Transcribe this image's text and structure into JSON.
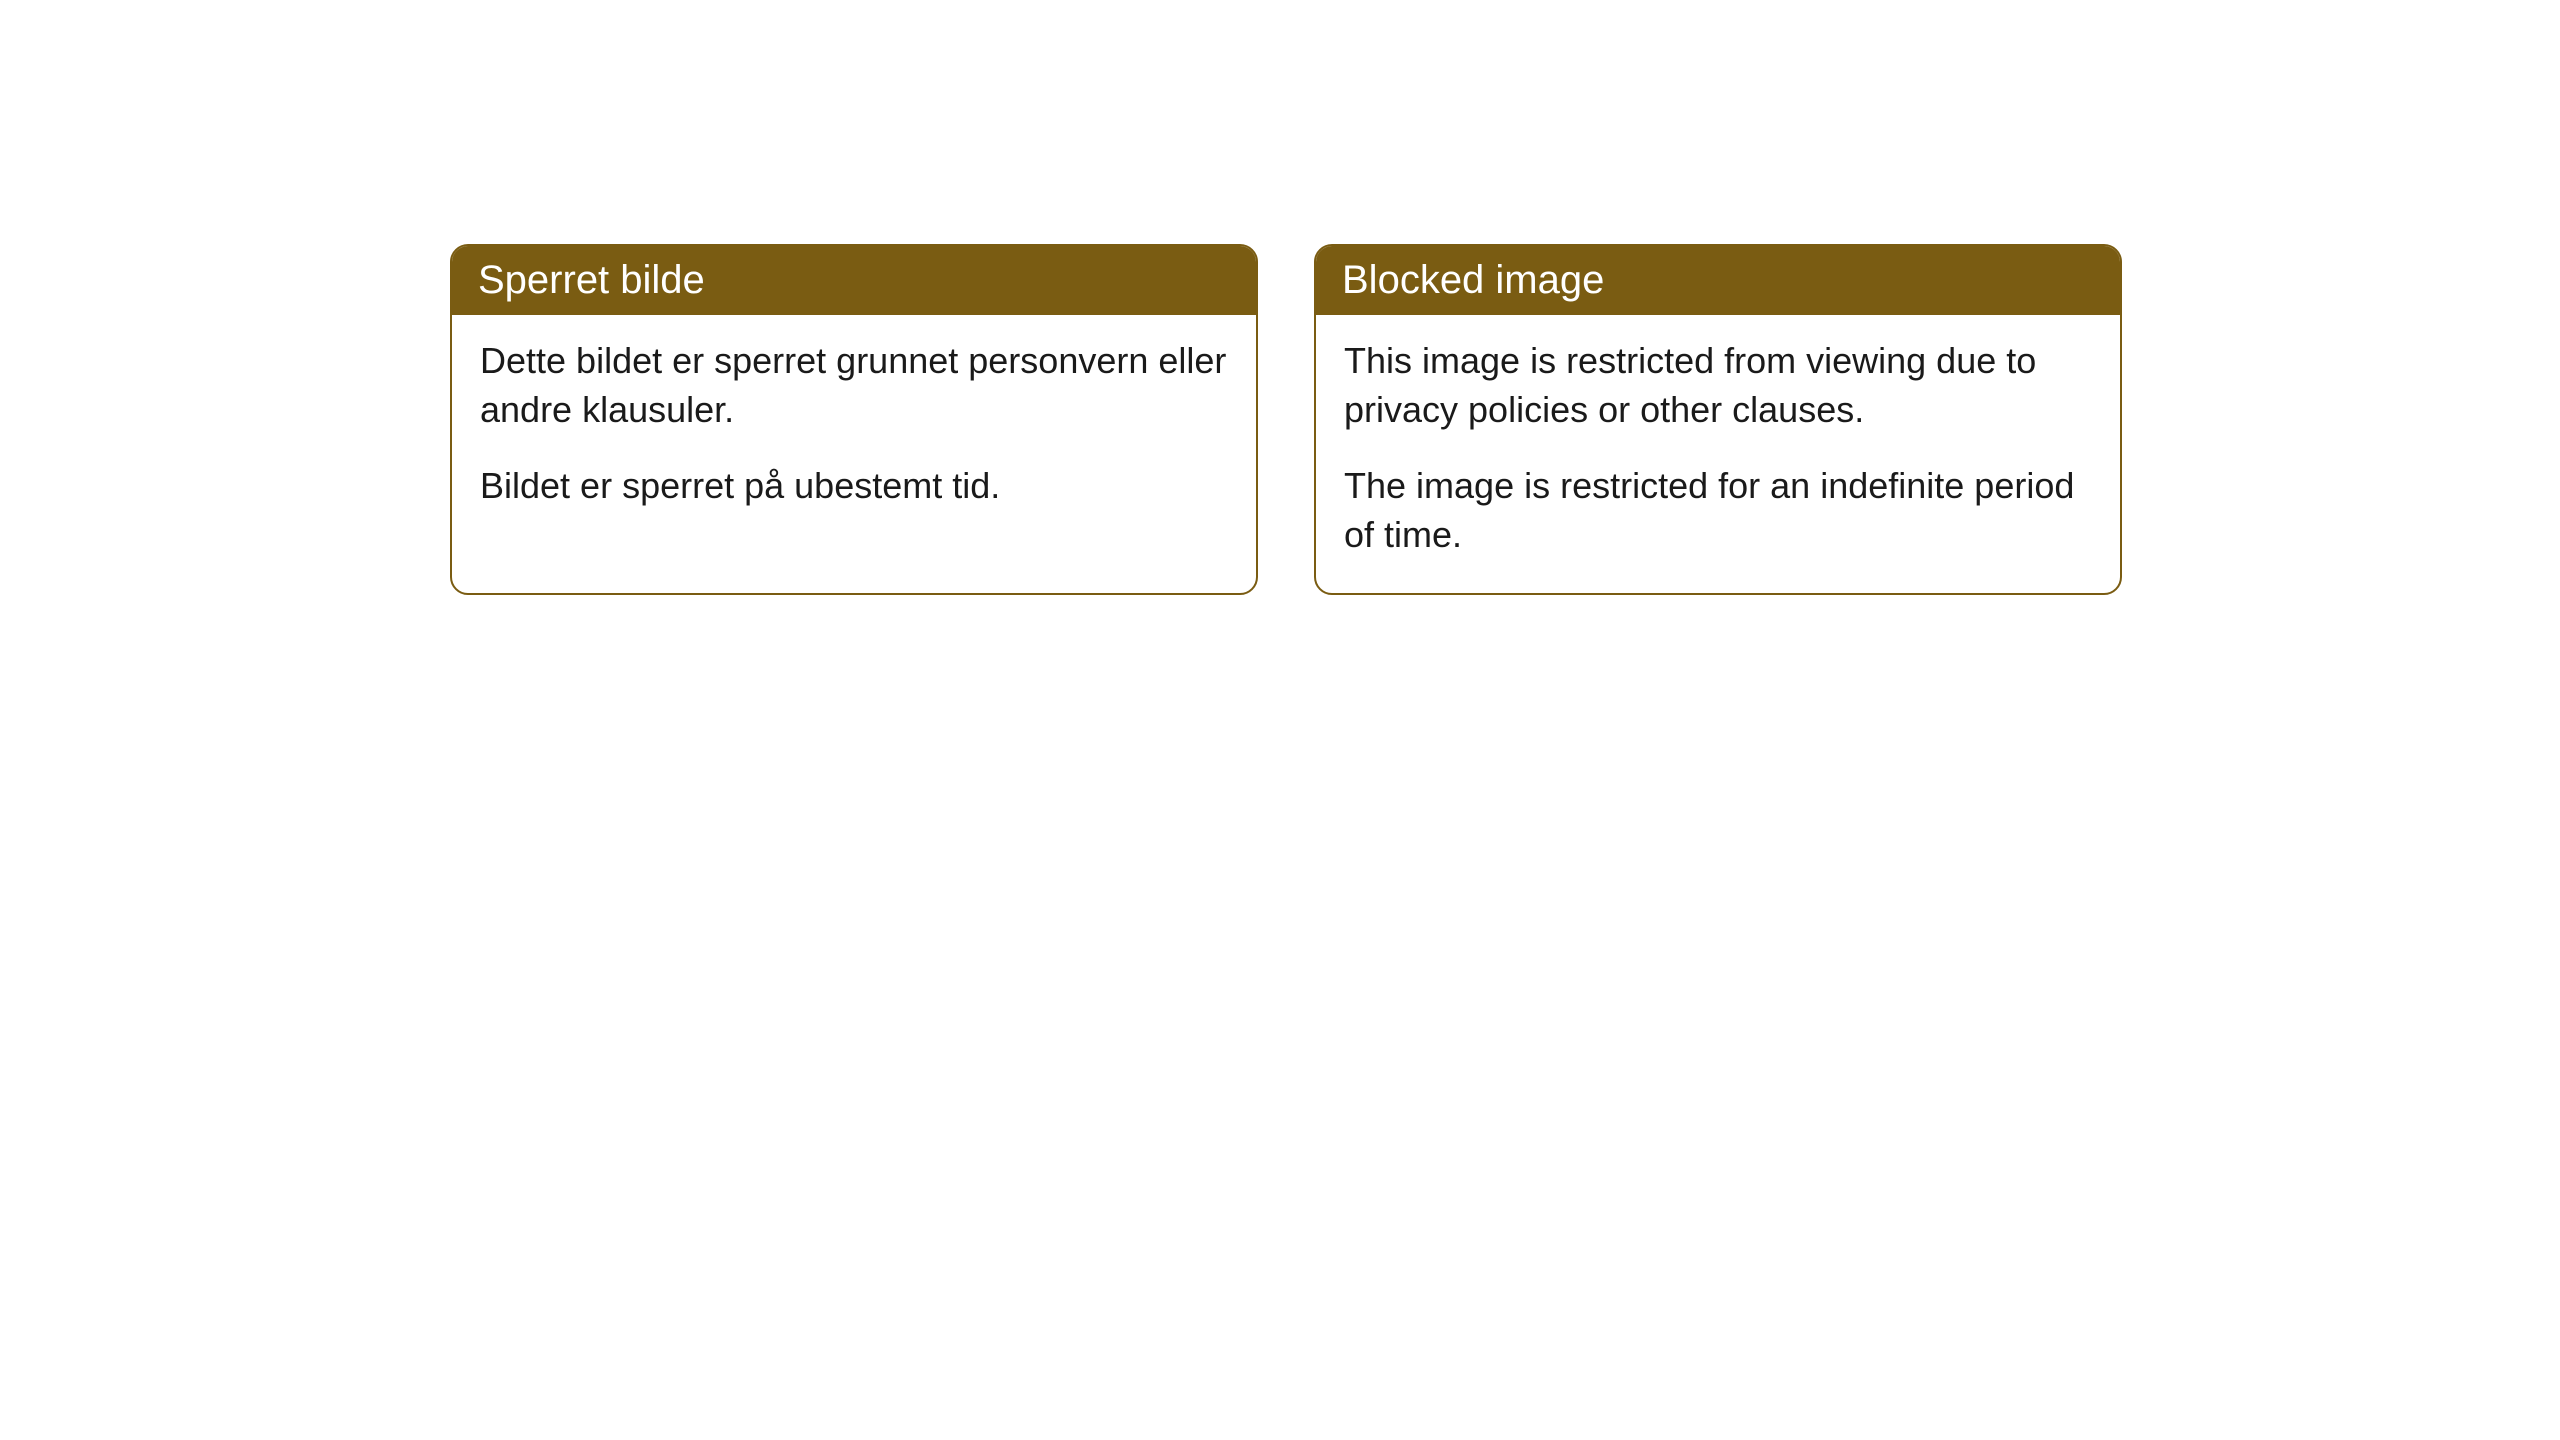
{
  "cards": [
    {
      "title": "Sperret bilde",
      "paragraph1": "Dette bildet er sperret grunnet personvern eller andre klausuler.",
      "paragraph2": "Bildet er sperret på ubestemt tid."
    },
    {
      "title": "Blocked image",
      "paragraph1": "This image is restricted from viewing due to privacy policies or other clauses.",
      "paragraph2": "The image is restricted for an indefinite period of time."
    }
  ],
  "styling": {
    "header_background": "#7a5c12",
    "header_text_color": "#ffffff",
    "border_color": "#7a5c12",
    "body_text_color": "#1a1a1a",
    "card_background": "#ffffff",
    "page_background": "#ffffff",
    "border_radius": 18,
    "header_fontsize": 40,
    "body_fontsize": 36
  }
}
